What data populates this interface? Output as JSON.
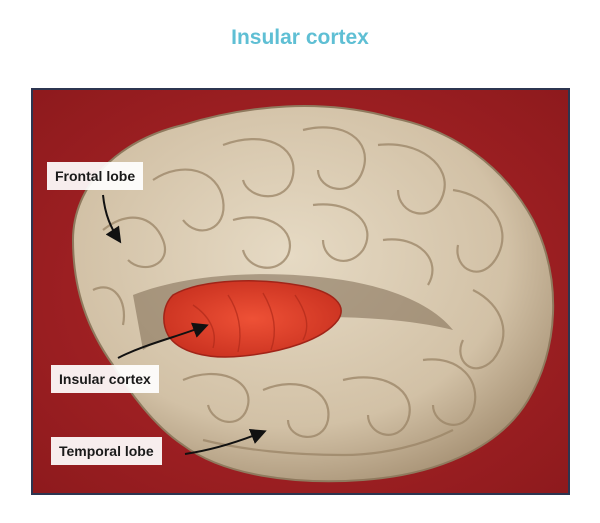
{
  "title": "Insular cortex",
  "labels": {
    "frontal": "Frontal lobe",
    "insular": "Insular cortex",
    "temporal": "Temporal lobe"
  },
  "colors": {
    "title": "#5fbfd4",
    "background": "#a82024",
    "brain": "#d9cbb2",
    "insula_highlight": "#e0402a",
    "frame": "#2c3550"
  }
}
